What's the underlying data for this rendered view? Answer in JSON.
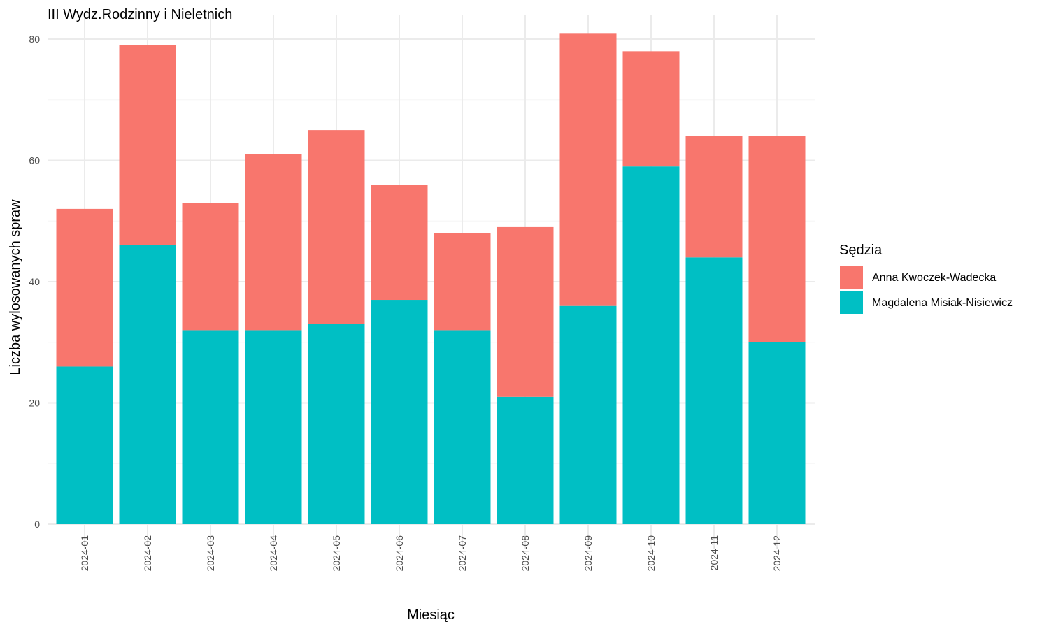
{
  "chart_data": {
    "type": "bar",
    "stacked": true,
    "title": "III Wydz.Rodzinny i Nieletnich",
    "xlabel": "Miesiąc",
    "ylabel": "Liczba wylosowanych spraw",
    "ylim": [
      0,
      84
    ],
    "yticks": [
      0,
      20,
      40,
      60,
      80
    ],
    "grid": true,
    "legend_title": "Sędzia",
    "legend_position": "right",
    "categories": [
      "2024-01",
      "2024-02",
      "2024-03",
      "2024-04",
      "2024-05",
      "2024-06",
      "2024-07",
      "2024-08",
      "2024-09",
      "2024-10",
      "2024-11",
      "2024-12"
    ],
    "series": [
      {
        "name": "Anna Kwoczek-Wadecka",
        "color": "#F8766D",
        "values": [
          26,
          33,
          21,
          29,
          32,
          19,
          16,
          28,
          45,
          19,
          20,
          34
        ]
      },
      {
        "name": "Magdalena Misiak-Nisiewicz",
        "color": "#00BFC4",
        "values": [
          26,
          46,
          32,
          32,
          33,
          37,
          32,
          21,
          36,
          59,
          44,
          30
        ]
      }
    ]
  }
}
